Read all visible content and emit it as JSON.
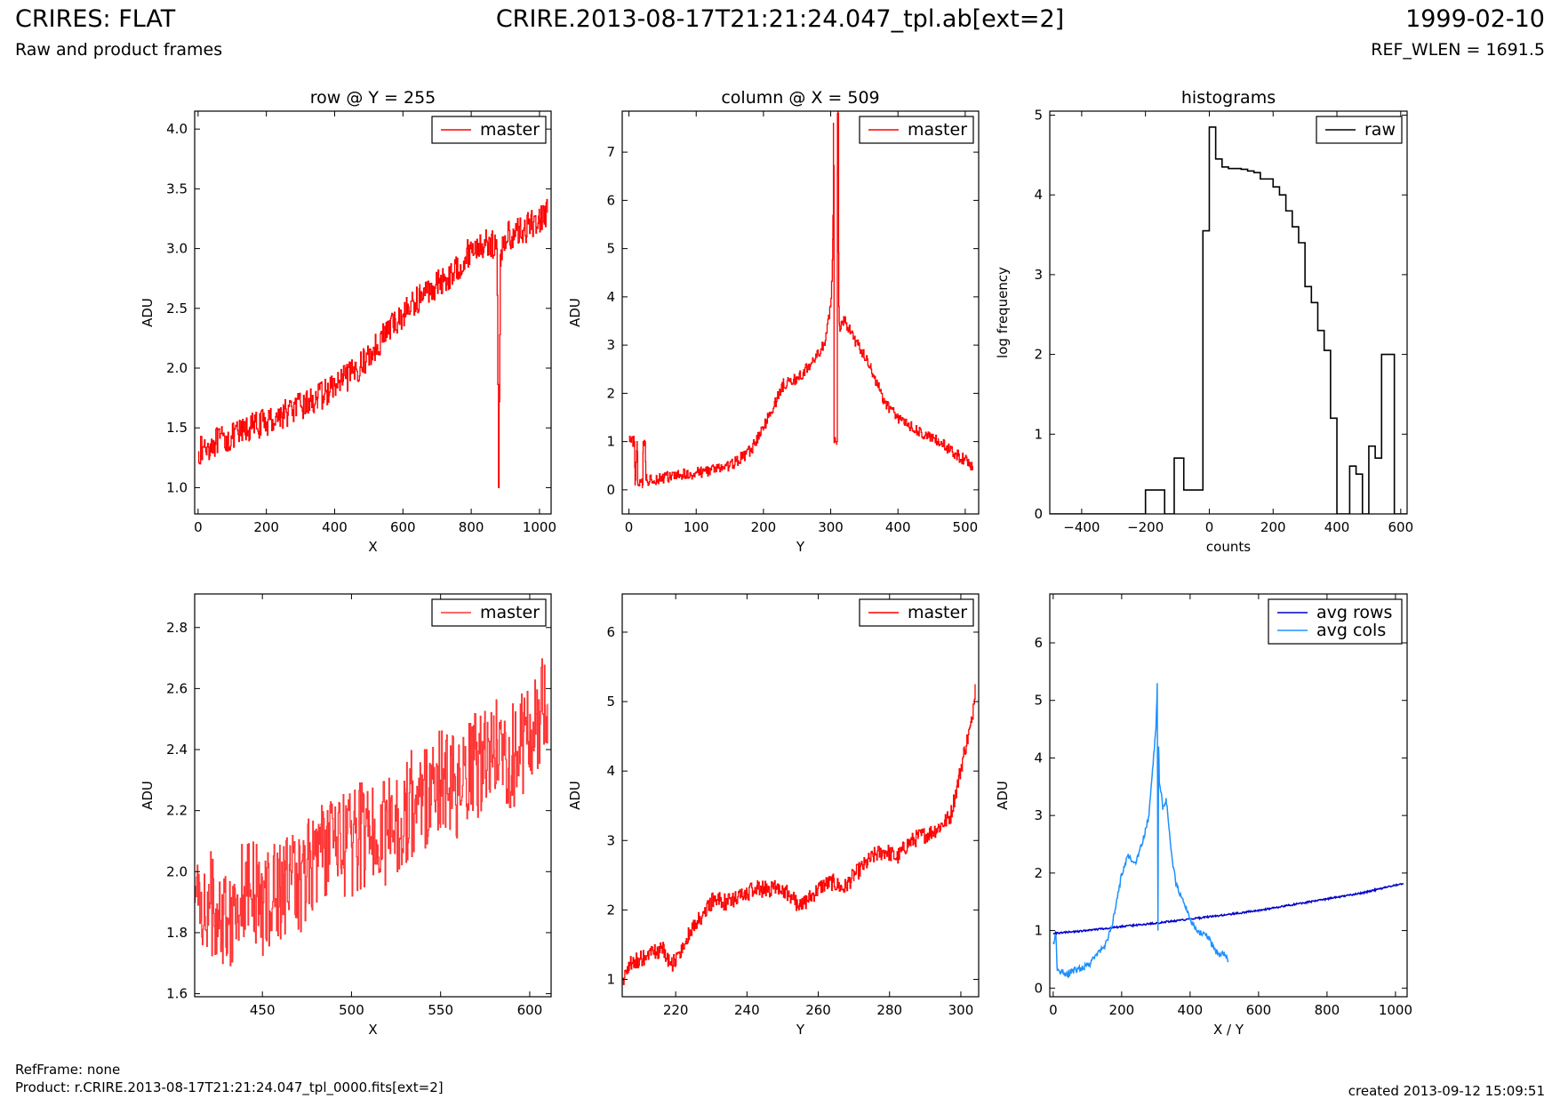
{
  "header": {
    "title_left": "CRIRES: FLAT",
    "subtitle_left": "Raw and product frames",
    "title_center": "CRIRE.2013-08-17T21:21:24.047_tpl.ab[ext=2]",
    "title_right": "1999-02-10",
    "subtitle_right": "REF_WLEN = 1691.5"
  },
  "footer": {
    "refframe": "RefFrame: none",
    "product": "Product: r.CRIRE.2013-08-17T21:21:24.047_tpl_0000.fits[ext=2]",
    "created": "created 2013-09-12 15:09:51"
  },
  "colors": {
    "master": "#ff0000",
    "raw": "#000000",
    "avg_rows": "#0000cc",
    "avg_cols": "#1e90ff",
    "master_zoom": "#ff3333"
  },
  "chart_data": [
    {
      "type": "line",
      "title": "row @ Y = 255",
      "xlabel": "X",
      "ylabel": "ADU",
      "xlim": [
        -10,
        1034
      ],
      "ylim": [
        0.78,
        4.15
      ],
      "xticks": [
        0,
        200,
        400,
        600,
        800,
        1000
      ],
      "yticks": [
        1.0,
        1.5,
        2.0,
        2.5,
        3.0,
        3.5,
        4.0
      ],
      "legend": "top-right",
      "series": [
        {
          "name": "master",
          "color": "#ff0000",
          "step": true,
          "x": [
            0,
            50,
            100,
            150,
            200,
            250,
            300,
            350,
            400,
            450,
            500,
            550,
            600,
            650,
            700,
            750,
            800,
            850,
            875,
            880,
            885,
            900,
            950,
            1000,
            1023
          ],
          "y": [
            1.3,
            1.38,
            1.42,
            1.5,
            1.55,
            1.62,
            1.68,
            1.75,
            1.85,
            1.95,
            2.1,
            2.3,
            2.45,
            2.6,
            2.7,
            2.8,
            3.0,
            3.05,
            3.0,
            1.0,
            2.95,
            3.1,
            3.15,
            3.25,
            3.3
          ],
          "noise": 0.12
        }
      ]
    },
    {
      "type": "line",
      "title": "column @ X = 509",
      "xlabel": "Y",
      "ylabel": "ADU",
      "xlim": [
        -10,
        520
      ],
      "ylim": [
        -0.5,
        7.85
      ],
      "xticks": [
        0,
        100,
        200,
        300,
        400,
        500
      ],
      "yticks": [
        0,
        1,
        2,
        3,
        4,
        5,
        6,
        7
      ],
      "legend": "top-right",
      "series": [
        {
          "name": "master",
          "color": "#ff0000",
          "step": true,
          "x": [
            0,
            8,
            9,
            12,
            13,
            20,
            21,
            24,
            25,
            50,
            100,
            150,
            180,
            200,
            230,
            250,
            270,
            290,
            300,
            303,
            304,
            305,
            306,
            307,
            308,
            309,
            310,
            311,
            312,
            313,
            320,
            340,
            360,
            380,
            400,
            430,
            460,
            490,
            511
          ],
          "y": [
            1.0,
            1.0,
            0.1,
            1.0,
            0.15,
            0.1,
            1.0,
            1.0,
            0.2,
            0.25,
            0.35,
            0.5,
            0.8,
            1.3,
            2.2,
            2.3,
            2.6,
            3.0,
            3.8,
            5.2,
            7.6,
            1.0,
            1.0,
            1.0,
            1.0,
            1.0,
            7.8,
            7.8,
            3.8,
            3.4,
            3.5,
            3.0,
            2.5,
            1.8,
            1.5,
            1.2,
            1.0,
            0.7,
            0.5
          ],
          "noise": 0.12
        }
      ]
    },
    {
      "type": "bar",
      "title": "histograms",
      "xlabel": "counts",
      "ylabel": "log frequency",
      "xlim": [
        -500,
        620
      ],
      "ylim": [
        0,
        5.05
      ],
      "xticks": [
        -400,
        -200,
        0,
        200,
        400,
        600
      ],
      "yticks": [
        0,
        1,
        2,
        3,
        4,
        5
      ],
      "legend": "top-right",
      "series": [
        {
          "name": "raw",
          "color": "#000000",
          "bin_edges": [
            -500,
            -460,
            -420,
            -380,
            -340,
            -300,
            -260,
            -220,
            -200,
            -140,
            -110,
            -80,
            -60,
            -20,
            0,
            20,
            40,
            60,
            80,
            100,
            120,
            140,
            160,
            180,
            200,
            220,
            240,
            260,
            280,
            300,
            320,
            340,
            360,
            380,
            400,
            420,
            440,
            460,
            480,
            500,
            520,
            540,
            560,
            580,
            600,
            620
          ],
          "values": [
            0,
            0,
            0,
            0,
            0,
            0,
            0,
            0,
            0.3,
            0,
            0.7,
            0.3,
            0.3,
            3.55,
            4.85,
            4.45,
            4.35,
            4.33,
            4.33,
            4.32,
            4.3,
            4.28,
            4.2,
            4.2,
            4.1,
            4.0,
            3.8,
            3.6,
            3.4,
            2.85,
            2.65,
            2.3,
            2.05,
            1.2,
            0,
            0,
            0.6,
            0.5,
            0,
            0.85,
            0.7,
            2.0,
            2.0,
            0,
            0
          ]
        }
      ]
    },
    {
      "type": "line",
      "title": "",
      "xlabel": "X",
      "ylabel": "ADU",
      "xlim": [
        412,
        612
      ],
      "ylim": [
        1.59,
        2.91
      ],
      "xticks": [
        450,
        500,
        550,
        600
      ],
      "yticks": [
        1.6,
        1.8,
        2.0,
        2.2,
        2.4,
        2.6,
        2.8
      ],
      "legend": "top-right",
      "series": [
        {
          "name": "master",
          "color": "#ff3333",
          "step": true,
          "x": [
            412,
            420,
            430,
            440,
            450,
            460,
            470,
            480,
            490,
            500,
            510,
            520,
            530,
            540,
            550,
            560,
            570,
            580,
            590,
            600,
            610
          ],
          "y": [
            1.9,
            1.9,
            1.85,
            1.95,
            1.9,
            1.95,
            1.97,
            2.05,
            2.1,
            2.08,
            2.15,
            2.12,
            2.2,
            2.25,
            2.3,
            2.25,
            2.35,
            2.4,
            2.38,
            2.45,
            2.55
          ],
          "noise": 0.18
        }
      ]
    },
    {
      "type": "line",
      "title": "",
      "xlabel": "Y",
      "ylabel": "ADU",
      "xlim": [
        205,
        305
      ],
      "ylim": [
        0.75,
        6.55
      ],
      "xticks": [
        220,
        240,
        260,
        280,
        300
      ],
      "yticks": [
        1,
        2,
        3,
        4,
        5,
        6
      ],
      "legend": "top-right",
      "series": [
        {
          "name": "master",
          "color": "#ff0000",
          "step": true,
          "x": [
            205,
            207,
            210,
            213,
            216,
            219,
            222,
            225,
            228,
            231,
            234,
            237,
            240,
            243,
            246,
            249,
            252,
            255,
            258,
            261,
            264,
            267,
            270,
            273,
            276,
            279,
            282,
            285,
            288,
            291,
            294,
            297,
            299,
            301,
            303,
            304
          ],
          "y": [
            1.0,
            1.2,
            1.3,
            1.35,
            1.45,
            1.2,
            1.5,
            1.75,
            1.95,
            2.2,
            2.1,
            2.15,
            2.25,
            2.3,
            2.3,
            2.35,
            2.2,
            2.05,
            2.2,
            2.35,
            2.4,
            2.3,
            2.5,
            2.65,
            2.8,
            2.85,
            2.75,
            2.95,
            3.05,
            3.1,
            3.2,
            3.35,
            3.8,
            4.3,
            4.7,
            5.25
          ],
          "noise": 0.12
        }
      ]
    },
    {
      "type": "line",
      "title": "",
      "xlabel": "X / Y",
      "ylabel": "ADU",
      "xlim": [
        -10,
        1034
      ],
      "ylim": [
        -0.15,
        6.85
      ],
      "xticks": [
        0,
        200,
        400,
        600,
        800,
        1000
      ],
      "yticks": [
        0,
        1,
        2,
        3,
        4,
        5,
        6
      ],
      "legend": "top-right",
      "series": [
        {
          "name": "avg rows",
          "color": "#0000cc",
          "x": [
            0,
            100,
            200,
            300,
            400,
            500,
            600,
            700,
            800,
            900,
            1023
          ],
          "y": [
            0.95,
            1.0,
            1.07,
            1.13,
            1.2,
            1.27,
            1.35,
            1.45,
            1.55,
            1.65,
            1.82
          ],
          "noise": 0.015
        },
        {
          "name": "avg cols",
          "color": "#1e90ff",
          "x": [
            0,
            8,
            12,
            20,
            40,
            60,
            80,
            100,
            120,
            140,
            160,
            180,
            200,
            220,
            240,
            260,
            280,
            290,
            300,
            304,
            306,
            308,
            309,
            310,
            312,
            316,
            320,
            330,
            340,
            350,
            360,
            380,
            400,
            420,
            450,
            480,
            500,
            511
          ],
          "y": [
            0.8,
            0.9,
            0.3,
            0.28,
            0.25,
            0.3,
            0.35,
            0.4,
            0.5,
            0.65,
            0.85,
            1.3,
            2.0,
            2.3,
            2.2,
            2.5,
            3.0,
            3.8,
            4.5,
            5.3,
            1.0,
            4.2,
            4.0,
            3.6,
            3.5,
            3.4,
            3.1,
            3.3,
            2.7,
            2.1,
            1.8,
            1.5,
            1.2,
            1.0,
            0.9,
            0.6,
            0.6,
            0.45
          ],
          "noise": 0.06
        }
      ]
    }
  ]
}
